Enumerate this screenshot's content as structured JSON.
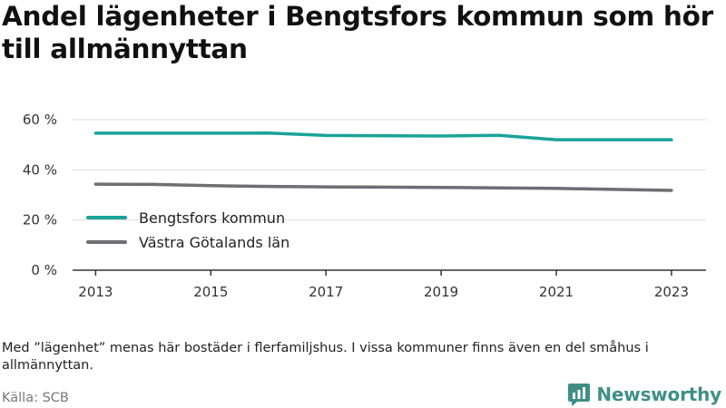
{
  "title": "Andel lägenheter i Bengtsfors kommun som hör till allmännyttan",
  "note": "Med ”lägenhet” menas här bostäder i flerfamiljshus. I vissa kommuner finns även en del småhus i allmännyttan.",
  "source": "Källa: SCB",
  "brand": {
    "name": "Newsworthy",
    "logo_icon": "newsworthy-logo-icon",
    "color": "#3f8f86"
  },
  "chart_data": {
    "type": "line",
    "title": "Andel lägenheter i Bengtsfors kommun som hör till allmännyttan",
    "x": [
      2013,
      2014,
      2015,
      2016,
      2017,
      2018,
      2019,
      2020,
      2021,
      2022,
      2023
    ],
    "x_ticks": [
      "2013",
      "2015",
      "2017",
      "2019",
      "2021",
      "2023"
    ],
    "y_ticks": [
      "0 %",
      "20 %",
      "40 %",
      "60 %"
    ],
    "ylim": [
      0,
      60
    ],
    "grid": true,
    "legend_position": "left-center",
    "series": [
      {
        "name": "Bengtsfors kommun",
        "color": "#1aa398",
        "values": [
          54.6,
          54.6,
          54.6,
          54.7,
          53.7,
          53.6,
          53.5,
          53.8,
          52.0,
          52.0,
          52.0
        ]
      },
      {
        "name": "Västra Götalands län",
        "color": "#6e6e73",
        "values": [
          34.3,
          34.2,
          33.7,
          33.4,
          33.2,
          33.1,
          33.0,
          32.8,
          32.6,
          32.2,
          31.8
        ]
      }
    ]
  }
}
